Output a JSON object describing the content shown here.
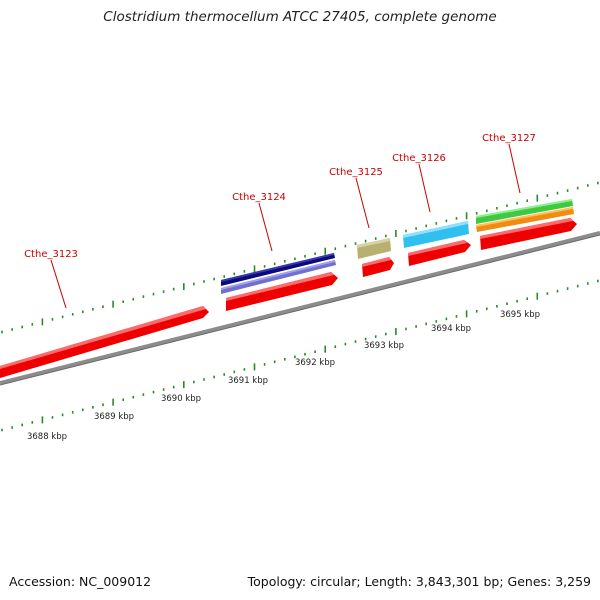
{
  "title": "Clostridium thermocellum ATCC 27405, complete genome",
  "accession": "Accession: NC_009012",
  "summary": "Topology: circular; Length: 3,843,301 bp; Genes: 3,259",
  "colors": {
    "gene_red": "#ee0000",
    "backbone": "#8c8c8c",
    "tick_green": "#2a8a2a",
    "label_red": "#cc0000",
    "navy": "#0a0a80",
    "lavender": "#7070d0",
    "khaki": "#b8b070",
    "sky": "#30c0f0",
    "lime": "#40c840",
    "orange": "#f08c10"
  },
  "scale_labels": [
    "3688 kbp",
    "3689 kbp",
    "3690 kbp",
    "3691 kbp",
    "3692 kbp",
    "3693 kbp",
    "3694 kbp",
    "3695 kbp"
  ],
  "genes": [
    {
      "name": "Cthe_3123"
    },
    {
      "name": "Cthe_3124"
    },
    {
      "name": "Cthe_3125"
    },
    {
      "name": "Cthe_3126"
    },
    {
      "name": "Cthe_3127"
    }
  ]
}
